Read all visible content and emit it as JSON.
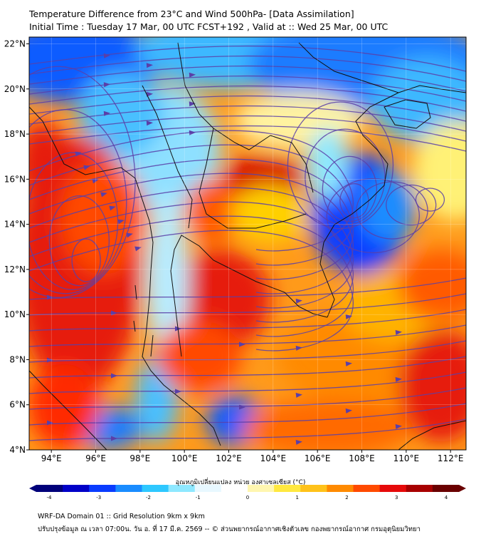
{
  "title": {
    "line1": "Temperature Difference from 23°C and Wind 500hPa- [Data Assimilation]",
    "line2": "Initial Time : Tuesday 17 Mar, 00 UTC FCST+192 , Valid at ::  Wed 25 Mar, 00 UTC"
  },
  "map": {
    "lat_ticks": [
      "22°N",
      "20°N",
      "18°N",
      "16°N",
      "14°N",
      "12°N",
      "10°N",
      "8°N",
      "6°N",
      "4°N"
    ],
    "lon_ticks": [
      "94°E",
      "96°E",
      "98°E",
      "100°E",
      "102°E",
      "104°E",
      "106°E",
      "108°E",
      "110°E",
      "112°E"
    ],
    "lat_range": [
      4,
      22.3
    ],
    "lon_range": [
      93,
      112.7
    ],
    "streamline_color": "#5a3fa8",
    "coast_color": "#111111"
  },
  "colorbar": {
    "title": "อุณหภูมิเปลี่ยนแปลง หน่วย องศาเซลเซียส (°C)",
    "ticks": [
      "-4",
      "-3",
      "-2",
      "-1",
      "0",
      "1",
      "2",
      "3",
      "4"
    ],
    "colors": [
      "#00007a",
      "#0000c8",
      "#0a3cff",
      "#1a8cff",
      "#2ec8ff",
      "#8ee8ff",
      "#e8f8ff",
      "#ffffff",
      "#fff6b0",
      "#ffe840",
      "#ffc21a",
      "#ff8a00",
      "#ff4a00",
      "#e60a0a",
      "#a80000",
      "#6a0000"
    ]
  },
  "footer": {
    "line1": "WRF-DA Domain 01 :: Grid Resolution 9km x 9km",
    "line2": "ปรับปรุงข้อมูล ณ เวลา 07:00น. วัน อ. ที่ 17 มี.ค. 2569 -- © ส่วนพยากรณ์อากาศเชิงตัวเลข กองพยากรณ์อากาศ กรมอุตุนิยมวิทยา"
  }
}
